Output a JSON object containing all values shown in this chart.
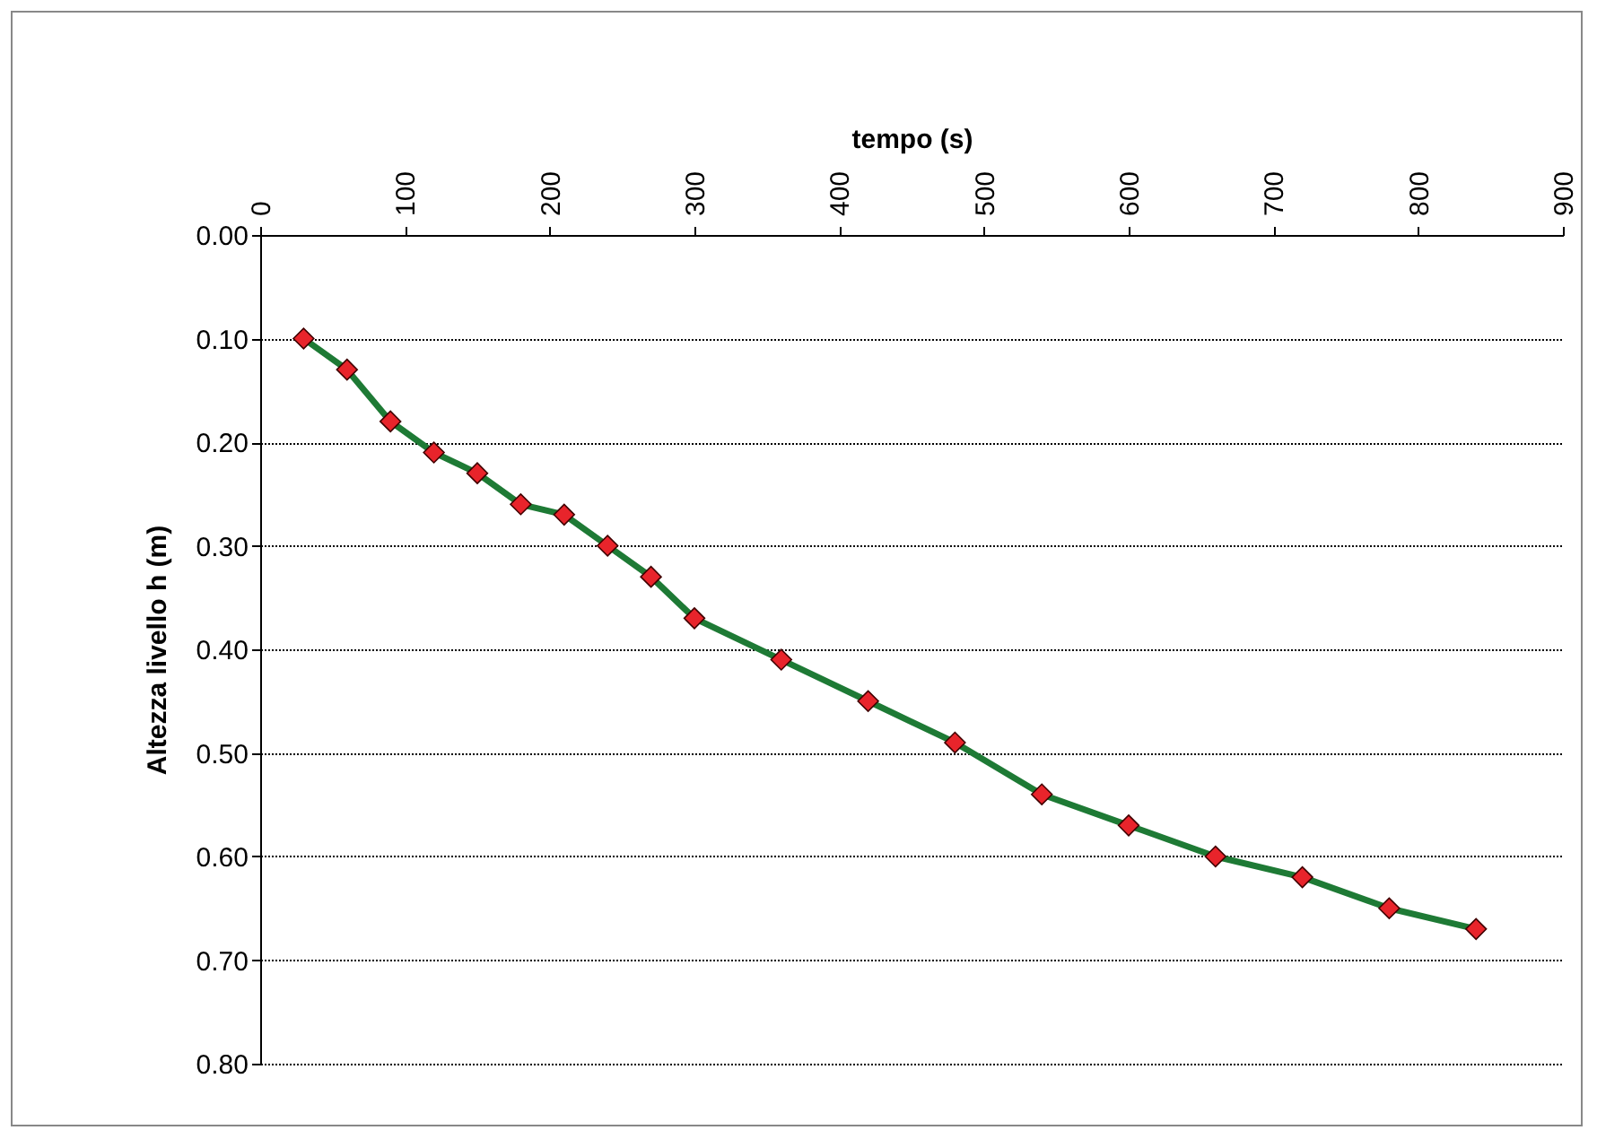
{
  "chart_data": {
    "type": "line",
    "xlabel": "tempo (s)",
    "ylabel": "Altezza livello h (m)",
    "x": [
      30,
      60,
      90,
      120,
      150,
      180,
      210,
      240,
      270,
      300,
      360,
      420,
      480,
      540,
      600,
      660,
      720,
      780,
      840
    ],
    "series": [
      {
        "color": "#1e7a35",
        "values": [
          0.1,
          0.13,
          0.18,
          0.21,
          0.23,
          0.26,
          0.27,
          0.3,
          0.33,
          0.37,
          0.41,
          0.45,
          0.49,
          0.54,
          0.57,
          0.6,
          0.62,
          0.65,
          0.67
        ]
      }
    ],
    "xlim": [
      0,
      900
    ],
    "xticks": [
      0,
      100,
      200,
      300,
      400,
      500,
      600,
      700,
      800,
      900
    ],
    "ylim": [
      0.8,
      0
    ],
    "yticks": [
      {
        "value": 0,
        "label": "0.00"
      },
      {
        "value": 0.1,
        "label": "0.10"
      },
      {
        "value": 0.2,
        "label": "0.20"
      },
      {
        "value": 0.3,
        "label": "0.30"
      },
      {
        "value": 0.4,
        "label": "0.40"
      },
      {
        "value": 0.5,
        "label": "0.50"
      },
      {
        "value": 0.6,
        "label": "0.60"
      },
      {
        "value": 0.7,
        "label": "0.70"
      },
      {
        "value": 0.8,
        "label": "0.80"
      }
    ],
    "grid": "y",
    "marker": "diamond",
    "line_style": "solid"
  }
}
